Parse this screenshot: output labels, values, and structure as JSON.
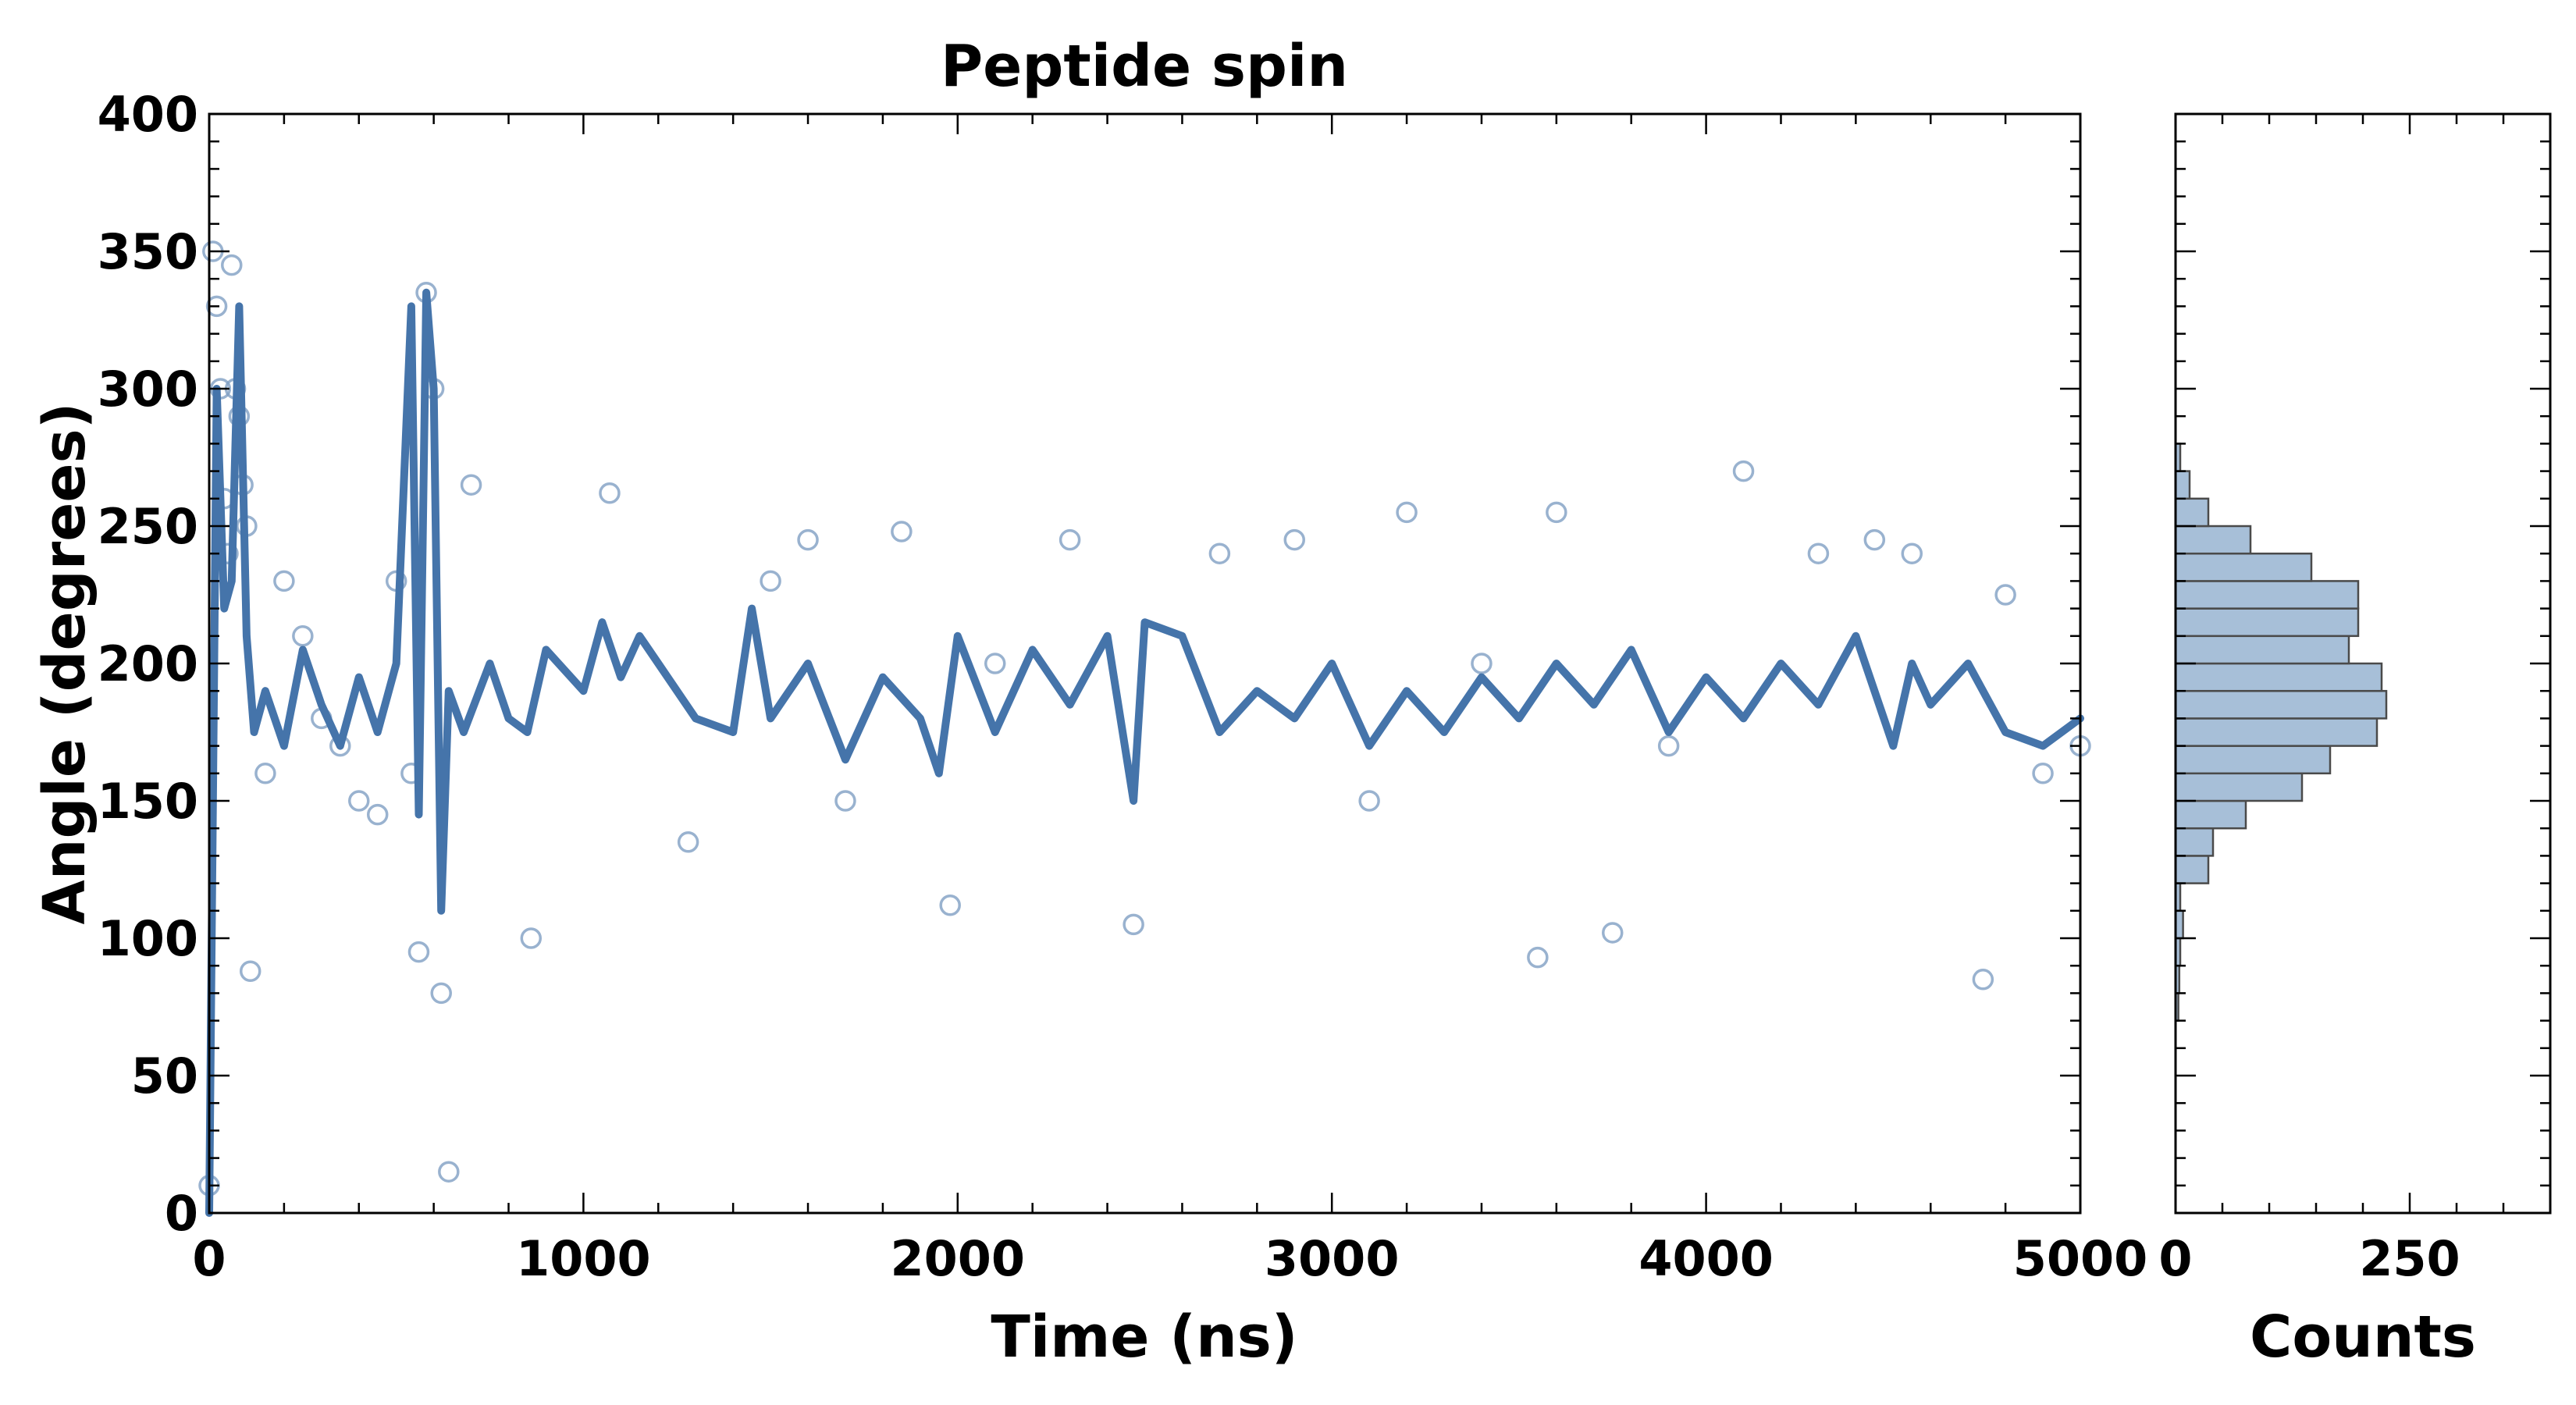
{
  "chart_data": [
    {
      "type": "scatter",
      "title": "Peptide spin",
      "xlabel": "Time (ns)",
      "ylabel": "Angle (degrees)",
      "xlim": [
        0,
        5000
      ],
      "ylim": [
        0,
        400
      ],
      "x_ticks": [
        0,
        1000,
        2000,
        3000,
        4000,
        5000
      ],
      "y_ticks": [
        0,
        50,
        100,
        150,
        200,
        250,
        300,
        350,
        400
      ],
      "grid": false,
      "legend": "none",
      "colors": {
        "points": "#7f9fc3",
        "line": "#4574aa"
      },
      "series": [
        {
          "kind": "scatter-markers-open-circle",
          "x": [
            0,
            10,
            20,
            30,
            40,
            50,
            60,
            70,
            80,
            90,
            100,
            110,
            150,
            200,
            250,
            300,
            350,
            400,
            450,
            500,
            540,
            560,
            580,
            600,
            620,
            640,
            700,
            860,
            1070,
            1280,
            1500,
            1600,
            1700,
            1850,
            1980,
            2100,
            2300,
            2470,
            2700,
            2900,
            3100,
            3200,
            3400,
            3550,
            3600,
            3750,
            3900,
            4100,
            4300,
            4450,
            4550,
            4740,
            4800,
            4900,
            5000
          ],
          "y": [
            10,
            350,
            330,
            300,
            260,
            240,
            345,
            300,
            290,
            265,
            250,
            88,
            160,
            230,
            210,
            180,
            170,
            150,
            145,
            230,
            160,
            95,
            335,
            300,
            80,
            15,
            265,
            100,
            262,
            135,
            230,
            245,
            150,
            248,
            112,
            200,
            245,
            105,
            240,
            245,
            150,
            255,
            200,
            93,
            255,
            102,
            170,
            270,
            240,
            245,
            240,
            85,
            225,
            160,
            170
          ]
        },
        {
          "kind": "running-average-line",
          "x": [
            0,
            20,
            40,
            60,
            80,
            100,
            120,
            150,
            200,
            250,
            300,
            350,
            400,
            450,
            500,
            540,
            560,
            580,
            600,
            620,
            640,
            680,
            750,
            800,
            850,
            900,
            1000,
            1050,
            1100,
            1150,
            1200,
            1300,
            1400,
            1450,
            1500,
            1600,
            1700,
            1800,
            1900,
            1950,
            2000,
            2100,
            2200,
            2300,
            2400,
            2470,
            2500,
            2600,
            2700,
            2800,
            2900,
            3000,
            3100,
            3200,
            3300,
            3400,
            3500,
            3600,
            3700,
            3800,
            3900,
            4000,
            4100,
            4200,
            4300,
            4400,
            4500,
            4550,
            4600,
            4700,
            4800,
            4900,
            5000
          ],
          "y": [
            0,
            300,
            220,
            230,
            330,
            210,
            175,
            190,
            170,
            205,
            185,
            170,
            195,
            175,
            200,
            330,
            145,
            335,
            300,
            110,
            190,
            175,
            200,
            180,
            175,
            205,
            190,
            215,
            195,
            210,
            200,
            180,
            175,
            220,
            180,
            200,
            165,
            195,
            180,
            160,
            210,
            175,
            205,
            185,
            210,
            150,
            215,
            210,
            175,
            190,
            180,
            200,
            170,
            190,
            175,
            195,
            180,
            200,
            185,
            205,
            175,
            195,
            180,
            200,
            185,
            210,
            170,
            200,
            185,
            200,
            175,
            170,
            180
          ]
        }
      ]
    },
    {
      "type": "bar",
      "orientation": "horizontal",
      "xlabel": "Counts",
      "xlim": [
        0,
        400
      ],
      "x_ticks": [
        0,
        250
      ],
      "ylim": [
        0,
        400
      ],
      "colors": {
        "bars": "#a7bfd8",
        "edges": "#4a4a4a"
      },
      "bins": [
        70,
        80,
        90,
        100,
        110,
        120,
        130,
        140,
        150,
        160,
        170,
        180,
        190,
        200,
        210,
        220,
        230,
        240,
        250,
        260,
        270
      ],
      "values": [
        3,
        4,
        5,
        8,
        5,
        35,
        40,
        75,
        135,
        165,
        215,
        225,
        220,
        185,
        195,
        195,
        145,
        80,
        35,
        15,
        5
      ]
    }
  ]
}
